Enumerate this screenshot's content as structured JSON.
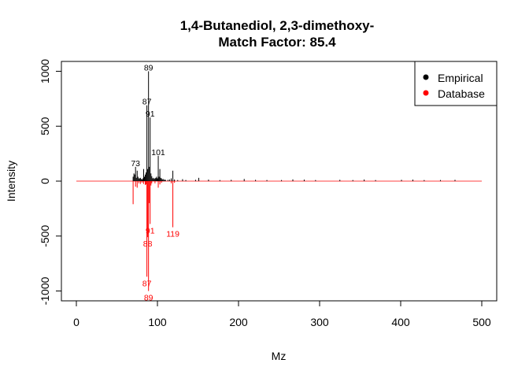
{
  "chart_data": {
    "type": "bar",
    "title": "1,4-Butanediol, 2,3-dimethoxy-",
    "subtitle": "Match Factor: 85.4",
    "xlabel": "Mz",
    "ylabel": "Intensity",
    "xlim": [
      0,
      500
    ],
    "ylim": [
      -1000,
      1000
    ],
    "xticks": [
      "0",
      "100",
      "200",
      "300",
      "400",
      "500"
    ],
    "yticks": [
      "-1000",
      "-500",
      "0",
      "500",
      "1000"
    ],
    "grid": false,
    "legend": {
      "position": "top-right",
      "entries": [
        "Empirical",
        "Database"
      ]
    },
    "colors": {
      "Empirical": "#000000",
      "Database": "#ff0000"
    },
    "series": [
      {
        "name": "Empirical",
        "color": "#000000",
        "peaks": [
          [
            70,
            40
          ],
          [
            71,
            70
          ],
          [
            72,
            60
          ],
          [
            73,
            130
          ],
          [
            74,
            30
          ],
          [
            75,
            95
          ],
          [
            76,
            40
          ],
          [
            77,
            25
          ],
          [
            78,
            25
          ],
          [
            79,
            30
          ],
          [
            80,
            20
          ],
          [
            81,
            15
          ],
          [
            82,
            25
          ],
          [
            83,
            110
          ],
          [
            84,
            40
          ],
          [
            85,
            60
          ],
          [
            86,
            80
          ],
          [
            87,
            690
          ],
          [
            88,
            110
          ],
          [
            89,
            1000
          ],
          [
            90,
            130
          ],
          [
            91,
            580
          ],
          [
            92,
            70
          ],
          [
            93,
            45
          ],
          [
            94,
            25
          ],
          [
            95,
            30
          ],
          [
            96,
            20
          ],
          [
            97,
            25
          ],
          [
            98,
            30
          ],
          [
            99,
            40
          ],
          [
            100,
            25
          ],
          [
            101,
            230
          ],
          [
            102,
            40
          ],
          [
            103,
            110
          ],
          [
            104,
            30
          ],
          [
            105,
            25
          ],
          [
            106,
            15
          ],
          [
            107,
            20
          ],
          [
            108,
            10
          ],
          [
            109,
            15
          ],
          [
            110,
            10
          ],
          [
            113,
            12
          ],
          [
            115,
            15
          ],
          [
            117,
            25
          ],
          [
            119,
            95
          ],
          [
            121,
            15
          ],
          [
            125,
            10
          ],
          [
            131,
            18
          ],
          [
            135,
            10
          ],
          [
            147,
            12
          ],
          [
            151,
            30
          ],
          [
            163,
            14
          ],
          [
            177,
            10
          ],
          [
            191,
            12
          ],
          [
            207,
            20
          ],
          [
            221,
            12
          ],
          [
            235,
            10
          ],
          [
            253,
            10
          ],
          [
            267,
            16
          ],
          [
            281,
            14
          ],
          [
            295,
            10
          ],
          [
            325,
            12
          ],
          [
            341,
            10
          ],
          [
            355,
            15
          ],
          [
            369,
            10
          ],
          [
            401,
            12
          ],
          [
            415,
            14
          ],
          [
            429,
            10
          ],
          [
            449,
            10
          ],
          [
            467,
            12
          ]
        ],
        "labels": [
          {
            "mz": 73,
            "text": "73"
          },
          {
            "mz": 87,
            "text": "87"
          },
          {
            "mz": 89,
            "text": "89"
          },
          {
            "mz": 91,
            "text": "91"
          },
          {
            "mz": 101,
            "text": "101"
          }
        ]
      },
      {
        "name": "Database",
        "color": "#ff0000",
        "peaks": [
          [
            70,
            -210
          ],
          [
            73,
            -50
          ],
          [
            75,
            -60
          ],
          [
            77,
            -20
          ],
          [
            79,
            -25
          ],
          [
            81,
            -15
          ],
          [
            83,
            -25
          ],
          [
            85,
            -35
          ],
          [
            86,
            -30
          ],
          [
            87,
            -870
          ],
          [
            88,
            -510
          ],
          [
            89,
            -1000
          ],
          [
            90,
            -200
          ],
          [
            91,
            -390
          ],
          [
            92,
            -40
          ],
          [
            93,
            -20
          ],
          [
            97,
            -20
          ],
          [
            101,
            -60
          ],
          [
            103,
            -30
          ],
          [
            105,
            -15
          ],
          [
            117,
            -20
          ],
          [
            119,
            -420
          ],
          [
            121,
            -15
          ]
        ],
        "labels": [
          {
            "mz": 87,
            "text": "87"
          },
          {
            "mz": 88,
            "text": "88"
          },
          {
            "mz": 89,
            "text": "89"
          },
          {
            "mz": 91,
            "text": "91"
          },
          {
            "mz": 119,
            "text": "119"
          }
        ]
      }
    ]
  }
}
